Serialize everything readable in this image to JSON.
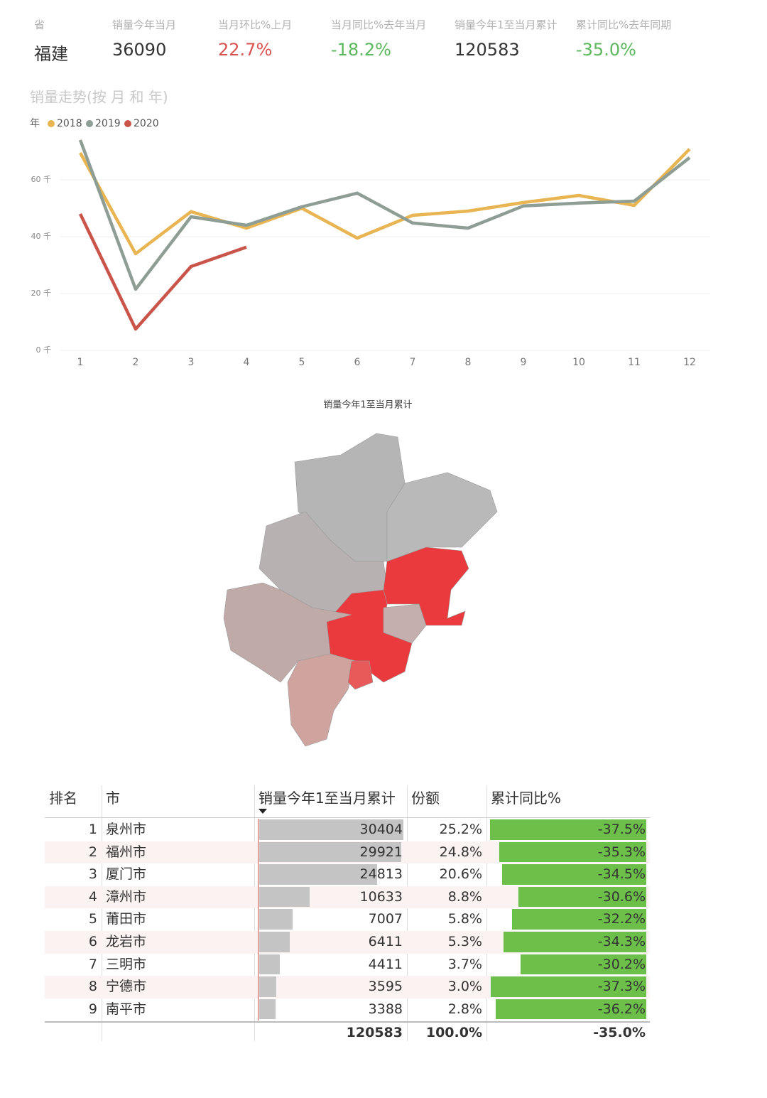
{
  "kpis": [
    {
      "label": "省",
      "value": "福建"
    },
    {
      "label": "销量今年当月",
      "value": "36090"
    },
    {
      "label": "当月环比%上月",
      "value": "22.7%"
    },
    {
      "label": "当月同比%去年当月",
      "value": "-18.2%"
    },
    {
      "label": "销量今年1至当月累计",
      "value": "120583"
    },
    {
      "label": "累计同比%去年同期",
      "value": "-35.0%"
    }
  ],
  "chart_data": {
    "type": "line",
    "title": "销量走势(按 月 和 年)",
    "legend_title": "年",
    "categories": [
      "1",
      "2",
      "3",
      "4",
      "5",
      "6",
      "7",
      "8",
      "9",
      "10",
      "11",
      "12"
    ],
    "series": [
      {
        "name": "2018",
        "color": "#e8b552",
        "values": [
          69500,
          34000,
          48800,
          43000,
          50000,
          39500,
          47500,
          49000,
          52000,
          54500,
          51000,
          70800
        ]
      },
      {
        "name": "2019",
        "color": "#8f9e94",
        "values": [
          74000,
          21500,
          47000,
          44000,
          50500,
          55300,
          44800,
          43000,
          50800,
          51800,
          52500,
          67800
        ]
      },
      {
        "name": "2020",
        "color": "#c9544a",
        "values": [
          48000,
          7500,
          29500,
          36300,
          null,
          null,
          null,
          null,
          null,
          null,
          null,
          null
        ]
      }
    ],
    "ylim": [
      0,
      75000
    ],
    "yticks": [
      {
        "value": 0,
        "label": "0 千"
      },
      {
        "value": 20000,
        "label": "20 千"
      },
      {
        "value": 40000,
        "label": "40 千"
      },
      {
        "value": 60000,
        "label": "60 千"
      }
    ],
    "grid": true
  },
  "map": {
    "title": "销量今年1至当月累计"
  },
  "table": {
    "columns": [
      "排名",
      "市",
      "销量今年1至当月累计",
      "份额",
      "累计同比%"
    ],
    "rows": [
      [
        1,
        "泉州市",
        30404,
        "25.2%",
        "-37.5%"
      ],
      [
        2,
        "福州市",
        29921,
        "24.8%",
        "-35.3%"
      ],
      [
        3,
        "厦门市",
        24813,
        "20.6%",
        "-34.5%"
      ],
      [
        4,
        "漳州市",
        10633,
        "8.8%",
        "-30.6%"
      ],
      [
        5,
        "莆田市",
        7007,
        "5.8%",
        "-32.2%"
      ],
      [
        6,
        "龙岩市",
        6411,
        "5.3%",
        "-34.3%"
      ],
      [
        7,
        "三明市",
        4411,
        "3.7%",
        "-30.2%"
      ],
      [
        8,
        "宁德市",
        3595,
        "3.0%",
        "-37.3%"
      ],
      [
        9,
        "南平市",
        3388,
        "2.8%",
        "-36.2%"
      ]
    ],
    "total": [
      "120583",
      "100.0%",
      "-35.0%"
    ]
  }
}
